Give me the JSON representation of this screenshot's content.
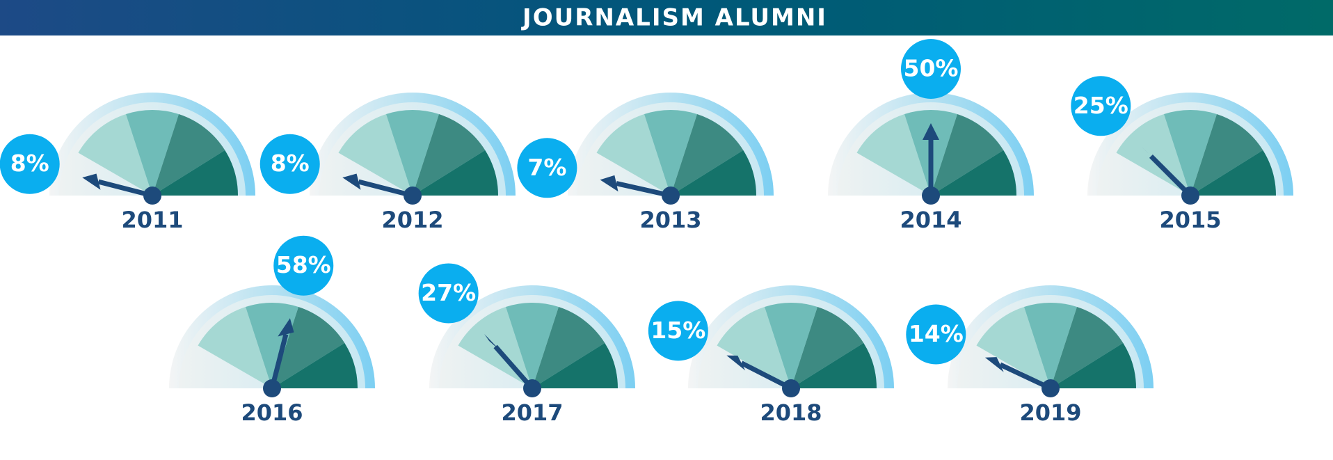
{
  "chart_data": {
    "type": "gauge",
    "title": "JOURNALISM ALUMNI",
    "categories": [
      "2011",
      "2012",
      "2013",
      "2014",
      "2015",
      "2016",
      "2017",
      "2018",
      "2019"
    ],
    "values": [
      8,
      8,
      7,
      50,
      25,
      58,
      27,
      15,
      14
    ],
    "value_labels": [
      "8%",
      "8%",
      "7%",
      "50%",
      "25%",
      "58%",
      "27%",
      "15%",
      "14%"
    ],
    "ylim": [
      0,
      100
    ]
  }
}
